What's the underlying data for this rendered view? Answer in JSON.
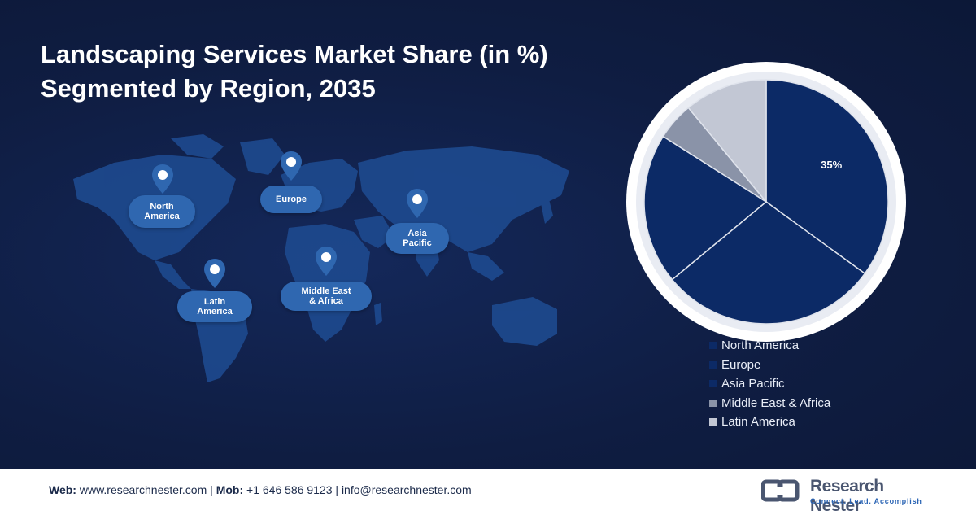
{
  "title": {
    "line1": "Landscaping Services Market Share (in %)",
    "line2": "Segmented by Region, 2035"
  },
  "map": {
    "labels": [
      {
        "id": "north-america",
        "text": "North\nAmerica"
      },
      {
        "id": "europe",
        "text": "Europe"
      },
      {
        "id": "asia-pacific",
        "text": "Asia\nPacific"
      },
      {
        "id": "latin-america",
        "text": "Latin\nAmerica"
      },
      {
        "id": "middle-east-africa",
        "text": "Middle East\n& Africa"
      }
    ]
  },
  "chart_data": {
    "type": "pie",
    "categories": [
      "North America",
      "Europe",
      "Asia Pacific",
      "Middle East & Africa",
      "Latin America"
    ],
    "values": [
      35,
      29,
      20,
      5,
      11
    ],
    "data_labels": [
      "35%",
      "",
      "",
      "",
      ""
    ],
    "colors": [
      "#0c2a66",
      "#0c2a66",
      "#0c2a66",
      "#8a93a8",
      "#c2c7d4"
    ],
    "legend_position": "bottom-right"
  },
  "footer": {
    "web_label": "Web:",
    "web_value": "www.researchnester.com",
    "sep1": "|",
    "mob_label": "Mob:",
    "mob_value": "+1 646 586 9123",
    "sep2": "|",
    "email": "info@researchnester.com",
    "brand_name": "Research Nester",
    "brand_tagline": "Connect. Lead. Accomplish"
  }
}
